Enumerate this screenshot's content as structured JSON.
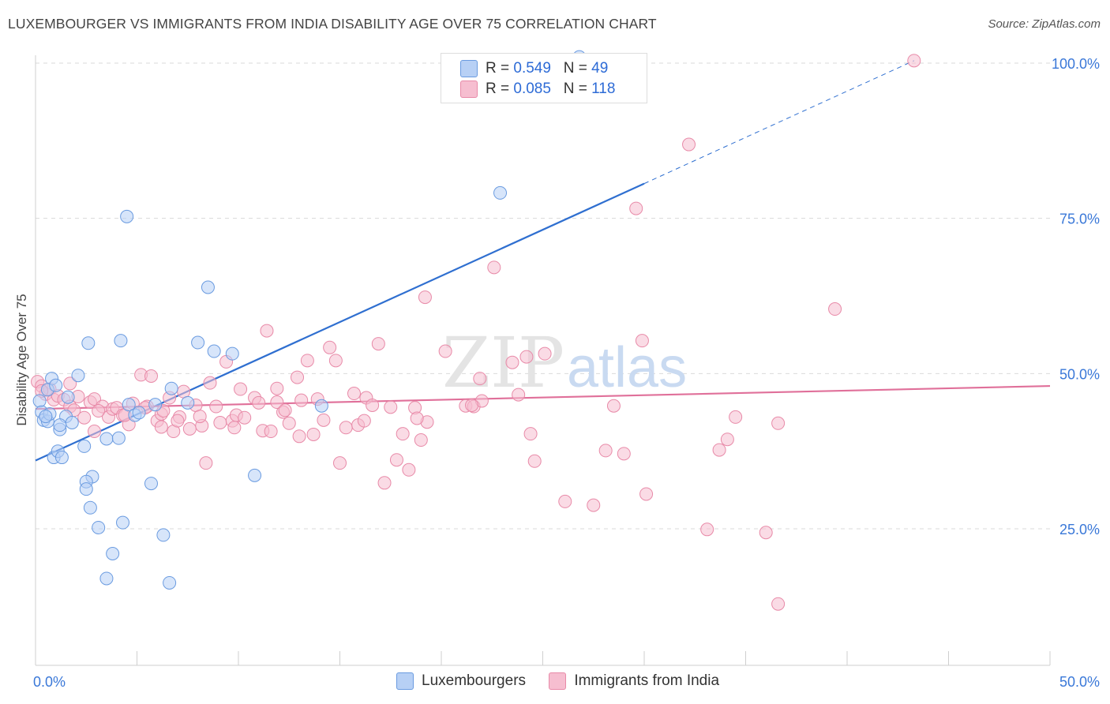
{
  "title": "LUXEMBOURGER VS IMMIGRANTS FROM INDIA DISABILITY AGE OVER 75 CORRELATION CHART",
  "source": "Source: ZipAtlas.com",
  "watermark": {
    "zip": "ZIP",
    "atlas": "atlas"
  },
  "colors": {
    "blue_fill": "#b7d0f5",
    "blue_stroke": "#6a9be0",
    "blue_line": "#2f6fd0",
    "pink_fill": "#f6bed0",
    "pink_stroke": "#e88aa8",
    "pink_line": "#e0709a",
    "axis_text": "#3a78d8",
    "grid": "#d9d9d9"
  },
  "legend": {
    "rows": [
      {
        "r_label": "R = ",
        "r_value": "0.549",
        "n_label": "N = ",
        "n_value": "49",
        "color": "#b7d0f5"
      },
      {
        "r_label": "R = ",
        "r_value": "0.085",
        "n_label": "N = ",
        "n_value": "118",
        "color": "#f6bed0"
      }
    ]
  },
  "bottom_legend": [
    "Luxembourgers",
    "Immigrants from India"
  ],
  "chart_data": {
    "type": "scatter",
    "title": "LUXEMBOURGER VS IMMIGRANTS FROM INDIA DISABILITY AGE OVER 75 CORRELATION CHART",
    "xlabel": "",
    "ylabel": "Disability Age Over 75",
    "xlim": [
      0,
      50
    ],
    "ylim": [
      0,
      102
    ],
    "x_tick_labels": [
      "0.0%",
      "50.0%"
    ],
    "y_tick_labels": [
      {
        "value": 25,
        "label": "25.0%"
      },
      {
        "value": 50,
        "label": "50.0%"
      },
      {
        "value": 75,
        "label": "75.0%"
      },
      {
        "value": 100,
        "label": "100.0%"
      }
    ],
    "grid": "horizontal dashed",
    "series": [
      {
        "name": "Luxembourgers",
        "points": [
          [
            0.2,
            45.6
          ],
          [
            0.3,
            43.8
          ],
          [
            0.4,
            42.5
          ],
          [
            0.6,
            42.3
          ],
          [
            0.7,
            43.5
          ],
          [
            0.8,
            49.2
          ],
          [
            0.9,
            36.5
          ],
          [
            1.1,
            37.5
          ],
          [
            1.2,
            41
          ],
          [
            1.3,
            36.5
          ],
          [
            1.5,
            43.1
          ],
          [
            1.6,
            46.2
          ],
          [
            1.8,
            42.1
          ],
          [
            2.1,
            49.7
          ],
          [
            2.4,
            38.3
          ],
          [
            2.6,
            54.9
          ],
          [
            2.7,
            28.4
          ],
          [
            2.8,
            33.4
          ],
          [
            2.5,
            32.6
          ],
          [
            2.5,
            31.4
          ],
          [
            3.5,
            39.5
          ],
          [
            3.5,
            17
          ],
          [
            3.8,
            21
          ],
          [
            4.1,
            39.6
          ],
          [
            4.2,
            55.3
          ],
          [
            4.3,
            26
          ],
          [
            4.5,
            75.3
          ],
          [
            4.6,
            45
          ],
          [
            4.9,
            43.3
          ],
          [
            5.1,
            43.7
          ],
          [
            3.1,
            25.2
          ],
          [
            5.7,
            32.3
          ],
          [
            5.9,
            45
          ],
          [
            6.3,
            24
          ],
          [
            6.6,
            16.3
          ],
          [
            6.7,
            47.6
          ],
          [
            7.5,
            45.3
          ],
          [
            8.0,
            55
          ],
          [
            8.5,
            63.9
          ],
          [
            8.8,
            53.6
          ],
          [
            9.7,
            53.2
          ],
          [
            10.8,
            33.6
          ],
          [
            14.1,
            44.8
          ],
          [
            22.9,
            79.1
          ],
          [
            26.8,
            101
          ],
          [
            0.6,
            47.4
          ],
          [
            1.2,
            41.7
          ],
          [
            0.5,
            43.1
          ],
          [
            1.0,
            48.1
          ]
        ],
        "trend": {
          "x": [
            0,
            30
          ],
          "y": [
            36,
            80.6
          ],
          "dashed_to": {
            "x": 43.3,
            "y": 100.4
          }
        }
      },
      {
        "name": "Immigrants from India",
        "points": [
          [
            0.1,
            48.7
          ],
          [
            0.3,
            48
          ],
          [
            0.5,
            46.7
          ],
          [
            0.7,
            47.5
          ],
          [
            0.9,
            45.8
          ],
          [
            1.1,
            46.4
          ],
          [
            1.4,
            45.8
          ],
          [
            1.7,
            44.7
          ],
          [
            2.1,
            46.3
          ],
          [
            2.4,
            42.9
          ],
          [
            2.7,
            45.4
          ],
          [
            2.9,
            45.9
          ],
          [
            3.3,
            44.7
          ],
          [
            3.6,
            43
          ],
          [
            3.8,
            44.3
          ],
          [
            4.0,
            44.5
          ],
          [
            4.3,
            43.3
          ],
          [
            4.6,
            41.8
          ],
          [
            4.8,
            45.2
          ],
          [
            5.2,
            49.8
          ],
          [
            5.5,
            44.7
          ],
          [
            5.7,
            49.6
          ],
          [
            6.0,
            42.4
          ],
          [
            6.2,
            43.5
          ],
          [
            6.6,
            46.1
          ],
          [
            6.8,
            40.7
          ],
          [
            7.1,
            43
          ],
          [
            7.3,
            47.1
          ],
          [
            7.6,
            41.1
          ],
          [
            7.9,
            44.9
          ],
          [
            8.2,
            41.6
          ],
          [
            8.4,
            35.6
          ],
          [
            8.6,
            48.5
          ],
          [
            8.9,
            44.7
          ],
          [
            9.1,
            42.1
          ],
          [
            9.4,
            51.9
          ],
          [
            9.7,
            42.4
          ],
          [
            9.9,
            43.3
          ],
          [
            10.1,
            47.5
          ],
          [
            10.3,
            42.9
          ],
          [
            10.8,
            46.1
          ],
          [
            11.0,
            45.3
          ],
          [
            11.2,
            40.8
          ],
          [
            11.4,
            56.9
          ],
          [
            11.6,
            40.7
          ],
          [
            11.9,
            47.6
          ],
          [
            12.2,
            43.8
          ],
          [
            12.5,
            42
          ],
          [
            12.9,
            49.4
          ],
          [
            13.1,
            45.7
          ],
          [
            13.4,
            52.1
          ],
          [
            13.7,
            40.2
          ],
          [
            13.9,
            45.9
          ],
          [
            14.2,
            42.5
          ],
          [
            14.5,
            54.2
          ],
          [
            14.8,
            52.1
          ],
          [
            15.0,
            35.6
          ],
          [
            15.3,
            41.3
          ],
          [
            15.7,
            46.8
          ],
          [
            15.9,
            41.7
          ],
          [
            16.3,
            46.1
          ],
          [
            16.6,
            44.9
          ],
          [
            16.9,
            54.8
          ],
          [
            17.2,
            32.4
          ],
          [
            17.5,
            44.6
          ],
          [
            17.8,
            36.1
          ],
          [
            18.1,
            40.3
          ],
          [
            18.4,
            34.5
          ],
          [
            18.7,
            44.5
          ],
          [
            19.0,
            39.3
          ],
          [
            19.3,
            42.2
          ],
          [
            19.2,
            62.3
          ],
          [
            20.2,
            53.6
          ],
          [
            21.2,
            44.8
          ],
          [
            21.6,
            44.7
          ],
          [
            21.9,
            49.2
          ],
          [
            22.0,
            45.6
          ],
          [
            22.6,
            67.1
          ],
          [
            23.5,
            51.8
          ],
          [
            23.8,
            46.6
          ],
          [
            24.2,
            52.7
          ],
          [
            24.4,
            40.3
          ],
          [
            24.6,
            35.9
          ],
          [
            25.1,
            53.2
          ],
          [
            26.1,
            29.4
          ],
          [
            27.5,
            28.8
          ],
          [
            28.1,
            37.6
          ],
          [
            28.5,
            44.8
          ],
          [
            29.0,
            37.1
          ],
          [
            29.6,
            76.6
          ],
          [
            30.1,
            30.6
          ],
          [
            29.9,
            55.3
          ],
          [
            32.2,
            86.9
          ],
          [
            33.1,
            24.9
          ],
          [
            33.7,
            37.7
          ],
          [
            34.1,
            39.4
          ],
          [
            34.5,
            43
          ],
          [
            36.0,
            24.4
          ],
          [
            36.6,
            42
          ],
          [
            36.6,
            12.9
          ],
          [
            39.4,
            60.4
          ],
          [
            43.3,
            100.4
          ],
          [
            5.4,
            44.5
          ],
          [
            6.3,
            44
          ],
          [
            2.9,
            40.7
          ],
          [
            9.8,
            41.3
          ],
          [
            13.0,
            39.9
          ],
          [
            3.1,
            44
          ],
          [
            1.9,
            44.1
          ],
          [
            4.4,
            43.3
          ],
          [
            7.0,
            42.4
          ],
          [
            11.9,
            45.4
          ],
          [
            8.1,
            43.1
          ],
          [
            6.2,
            41.4
          ],
          [
            16.2,
            42.4
          ],
          [
            18.8,
            42.8
          ],
          [
            21.5,
            44.9
          ],
          [
            0.3,
            47.2
          ],
          [
            1.7,
            48.4
          ],
          [
            12.3,
            44.1
          ]
        ],
        "trend": {
          "x": [
            0,
            50
          ],
          "y": [
            44.3,
            48
          ]
        }
      }
    ]
  }
}
